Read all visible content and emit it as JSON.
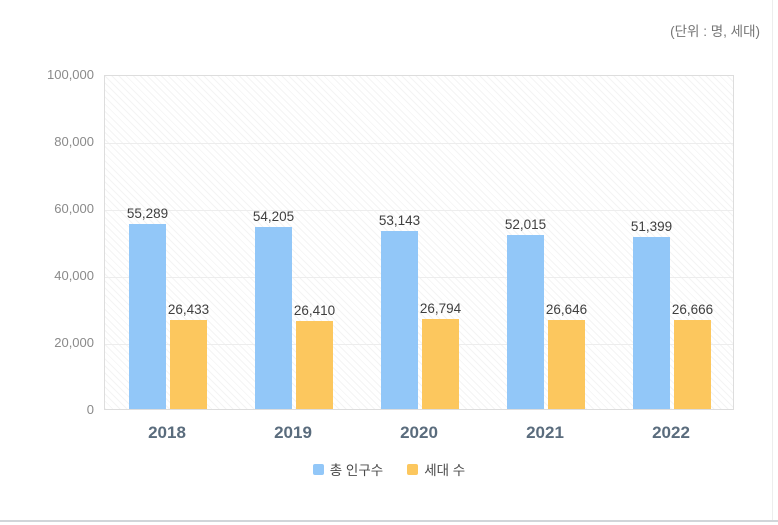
{
  "unit_label": "(단위 : 명, 세대)",
  "colors": {
    "population_bar": "#92C7F8",
    "household_bar": "#FCC75E",
    "x_label": "#5a6c7d",
    "value_label": "#3f3f3f",
    "y_label": "#8a8a8a",
    "gridline": "#ededed",
    "plot_border": "#dddddd",
    "bottom_rule": "#d1d5d9"
  },
  "chart_data": {
    "type": "bar",
    "categories": [
      "2018",
      "2019",
      "2020",
      "2021",
      "2022"
    ],
    "series": [
      {
        "name": "총 인구수",
        "key": "population",
        "color": "#92C7F8",
        "values": [
          55289,
          54205,
          53143,
          52015,
          51399
        ]
      },
      {
        "name": "세대 수",
        "key": "households",
        "color": "#FCC75E",
        "values": [
          26433,
          26410,
          26794,
          26646,
          26666
        ]
      }
    ],
    "title": "",
    "xlabel": "",
    "ylabel": "",
    "ylim": [
      0,
      100000
    ],
    "ytick_interval": 20000,
    "ytick_labels": [
      "0",
      "20,000",
      "40,000",
      "60,000",
      "80,000",
      "100,000"
    ],
    "grid": true,
    "value_labels": true,
    "legend_position": "bottom"
  },
  "legend": {
    "items": [
      {
        "label": "총 인구수",
        "color": "#92C7F8"
      },
      {
        "label": "세대 수",
        "color": "#FCC75E"
      }
    ]
  }
}
